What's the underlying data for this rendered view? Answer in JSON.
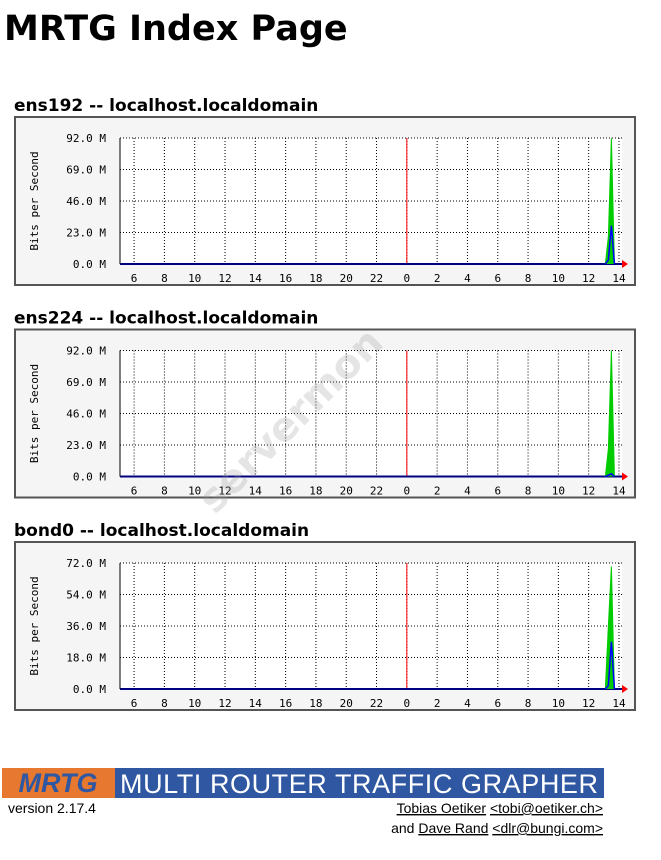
{
  "header": {
    "title": "MRTG Index Page"
  },
  "watermark": "servermon",
  "graphs": [
    {
      "title": "ens192 -- localhost.localdomain",
      "chart_data": {
        "type": "area",
        "y_label": "Bits per Second",
        "ylim": [
          0,
          92
        ],
        "yticks": [
          {
            "value": 0,
            "label": "0.0 M"
          },
          {
            "value": 23,
            "label": "23.0 M"
          },
          {
            "value": 46,
            "label": "46.0 M"
          },
          {
            "value": 69,
            "label": "69.0 M"
          },
          {
            "value": 92,
            "label": "92.0 M"
          }
        ],
        "xlim": [
          -0.93,
          32.2
        ],
        "xticks": [
          {
            "value": 0,
            "label": "6"
          },
          {
            "value": 2,
            "label": "8"
          },
          {
            "value": 4,
            "label": "10"
          },
          {
            "value": 6,
            "label": "12"
          },
          {
            "value": 8,
            "label": "14"
          },
          {
            "value": 10,
            "label": "16"
          },
          {
            "value": 12,
            "label": "18"
          },
          {
            "value": 14,
            "label": "20"
          },
          {
            "value": 16,
            "label": "22"
          },
          {
            "value": 18,
            "label": "0"
          },
          {
            "value": 20,
            "label": "2"
          },
          {
            "value": 22,
            "label": "4"
          },
          {
            "value": 24,
            "label": "6"
          },
          {
            "value": 26,
            "label": "8"
          },
          {
            "value": 28,
            "label": "10"
          },
          {
            "value": 30,
            "label": "12"
          },
          {
            "value": 32,
            "label": "14"
          }
        ],
        "day_marker": 18,
        "grid": true,
        "x": [
          31.1,
          31.3,
          31.5,
          31.7
        ],
        "series": [
          {
            "color": "#00cc00",
            "values": [
              0,
              20,
              92,
              0
            ]
          },
          {
            "color": "#0000ff",
            "values": [
              0,
              3,
              28,
              0
            ]
          }
        ]
      }
    },
    {
      "title": "ens224 -- localhost.localdomain",
      "chart_data": {
        "type": "area",
        "y_label": "Bits per Second",
        "ylim": [
          0,
          92
        ],
        "yticks": [
          {
            "value": 0,
            "label": "0.0 M"
          },
          {
            "value": 23,
            "label": "23.0 M"
          },
          {
            "value": 46,
            "label": "46.0 M"
          },
          {
            "value": 69,
            "label": "69.0 M"
          },
          {
            "value": 92,
            "label": "92.0 M"
          }
        ],
        "xlim": [
          -0.93,
          32.2
        ],
        "xticks": [
          {
            "value": 0,
            "label": "6"
          },
          {
            "value": 2,
            "label": "8"
          },
          {
            "value": 4,
            "label": "10"
          },
          {
            "value": 6,
            "label": "12"
          },
          {
            "value": 8,
            "label": "14"
          },
          {
            "value": 10,
            "label": "16"
          },
          {
            "value": 12,
            "label": "18"
          },
          {
            "value": 14,
            "label": "20"
          },
          {
            "value": 16,
            "label": "22"
          },
          {
            "value": 18,
            "label": "0"
          },
          {
            "value": 20,
            "label": "2"
          },
          {
            "value": 22,
            "label": "4"
          },
          {
            "value": 24,
            "label": "6"
          },
          {
            "value": 26,
            "label": "8"
          },
          {
            "value": 28,
            "label": "10"
          },
          {
            "value": 30,
            "label": "12"
          },
          {
            "value": 32,
            "label": "14"
          }
        ],
        "day_marker": 18,
        "grid": true,
        "x": [
          31.1,
          31.3,
          31.5,
          31.7
        ],
        "series": [
          {
            "color": "#00cc00",
            "values": [
              0,
              20,
              92,
              0
            ]
          },
          {
            "color": "#0000ff",
            "values": [
              0,
              1,
              2,
              0
            ]
          }
        ]
      }
    },
    {
      "title": "bond0 -- localhost.localdomain",
      "chart_data": {
        "type": "area",
        "y_label": "Bits per Second",
        "ylim": [
          0,
          72
        ],
        "yticks": [
          {
            "value": 0,
            "label": "0.0 M"
          },
          {
            "value": 18,
            "label": "18.0 M"
          },
          {
            "value": 36,
            "label": "36.0 M"
          },
          {
            "value": 54,
            "label": "54.0 M"
          },
          {
            "value": 72,
            "label": "72.0 M"
          }
        ],
        "xlim": [
          -0.93,
          32.2
        ],
        "xticks": [
          {
            "value": 0,
            "label": "6"
          },
          {
            "value": 2,
            "label": "8"
          },
          {
            "value": 4,
            "label": "10"
          },
          {
            "value": 6,
            "label": "12"
          },
          {
            "value": 8,
            "label": "14"
          },
          {
            "value": 10,
            "label": "16"
          },
          {
            "value": 12,
            "label": "18"
          },
          {
            "value": 14,
            "label": "20"
          },
          {
            "value": 16,
            "label": "22"
          },
          {
            "value": 18,
            "label": "0"
          },
          {
            "value": 20,
            "label": "2"
          },
          {
            "value": 22,
            "label": "4"
          },
          {
            "value": 24,
            "label": "6"
          },
          {
            "value": 26,
            "label": "8"
          },
          {
            "value": 28,
            "label": "10"
          },
          {
            "value": 30,
            "label": "12"
          },
          {
            "value": 32,
            "label": "14"
          }
        ],
        "day_marker": 18,
        "grid": true,
        "x": [
          31.1,
          31.3,
          31.5,
          31.7
        ],
        "series": [
          {
            "color": "#00cc00",
            "values": [
              0,
              36,
              70,
              0
            ]
          },
          {
            "color": "#0000ff",
            "values": [
              0,
              2,
              27,
              0
            ]
          }
        ]
      }
    }
  ],
  "footer": {
    "logo": "MRTG",
    "banner": "MULTI ROUTER TRAFFIC GRAPHER",
    "version": "version 2.17.4",
    "author1": "Tobias Oetiker",
    "email1": "<tobi@oetiker.ch>",
    "and": "and",
    "author2": "Dave Rand",
    "email2": "<dlr@bungi.com>"
  }
}
